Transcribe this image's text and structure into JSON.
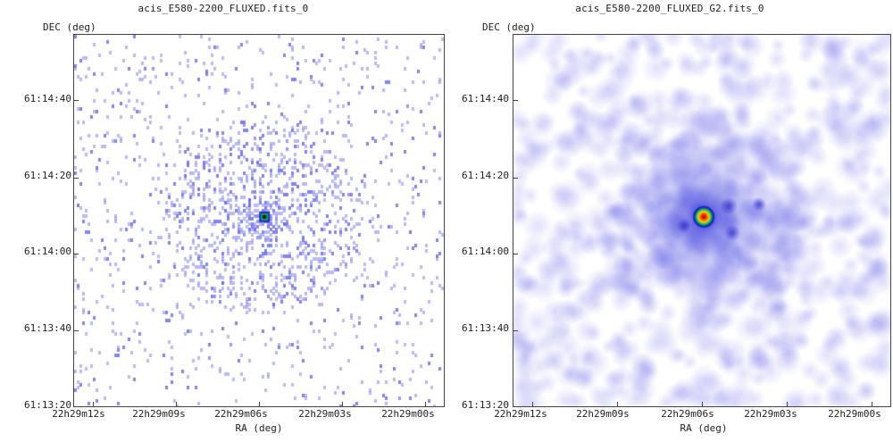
{
  "panels": [
    {
      "title": "acis_E580-2200_FLUXED.fits_0",
      "ylabel": "DEC (deg)",
      "xlabel": "RA (deg)",
      "yticks": [
        "61:14:40",
        "61:14:20",
        "61:14:00",
        "61:13:40",
        "61:13:20"
      ],
      "xticks": [
        "22h29m12s",
        "22h29m09s",
        "22h29m06s",
        "22h29m03s",
        "22h29m00s"
      ],
      "style": "binned-counts"
    },
    {
      "title": "acis_E580-2200_FLUXED_G2.fits_0",
      "ylabel": "DEC (deg)",
      "xlabel": "RA (deg)",
      "yticks": [
        "61:14:40",
        "61:14:20",
        "61:14:00",
        "61:13:40",
        "61:13:20"
      ],
      "xticks": [
        "22h29m12s",
        "22h29m09s",
        "22h29m06s",
        "22h29m03s",
        "22h29m00s"
      ],
      "style": "smoothed"
    }
  ],
  "chart_data": [
    {
      "type": "heatmap",
      "title": "acis_E580-2200_FLUXED.fits_0",
      "xlabel": "RA (deg)",
      "ylabel": "DEC (deg)",
      "x_tick_labels": [
        "22h29m12s",
        "22h29m09s",
        "22h29m06s",
        "22h29m03s",
        "22h29m00s"
      ],
      "y_tick_labels": [
        "61:14:40",
        "61:14:20",
        "61:14:00",
        "61:13:40",
        "61:13:20"
      ],
      "source_position": {
        "ra": "22h29m06s",
        "dec": "61:14:09"
      },
      "colormap": [
        "#ffffff",
        "#8c8cf0",
        "#2020d0",
        "#00c060",
        "#f0d000",
        "#e02000"
      ]
    },
    {
      "type": "heatmap",
      "title": "acis_E580-2200_FLUXED_G2.fits_0",
      "xlabel": "RA (deg)",
      "ylabel": "DEC (deg)",
      "x_tick_labels": [
        "22h29m12s",
        "22h29m09s",
        "22h29m06s",
        "22h29m03s",
        "22h29m00s"
      ],
      "y_tick_labels": [
        "61:14:40",
        "61:14:20",
        "61:14:00",
        "61:13:40",
        "61:13:20"
      ],
      "source_position": {
        "ra": "22h29m06s",
        "dec": "61:14:09"
      },
      "colormap": [
        "#ffffff",
        "#8c8cf0",
        "#2020d0",
        "#00c060",
        "#f0d000",
        "#e02000"
      ]
    }
  ]
}
